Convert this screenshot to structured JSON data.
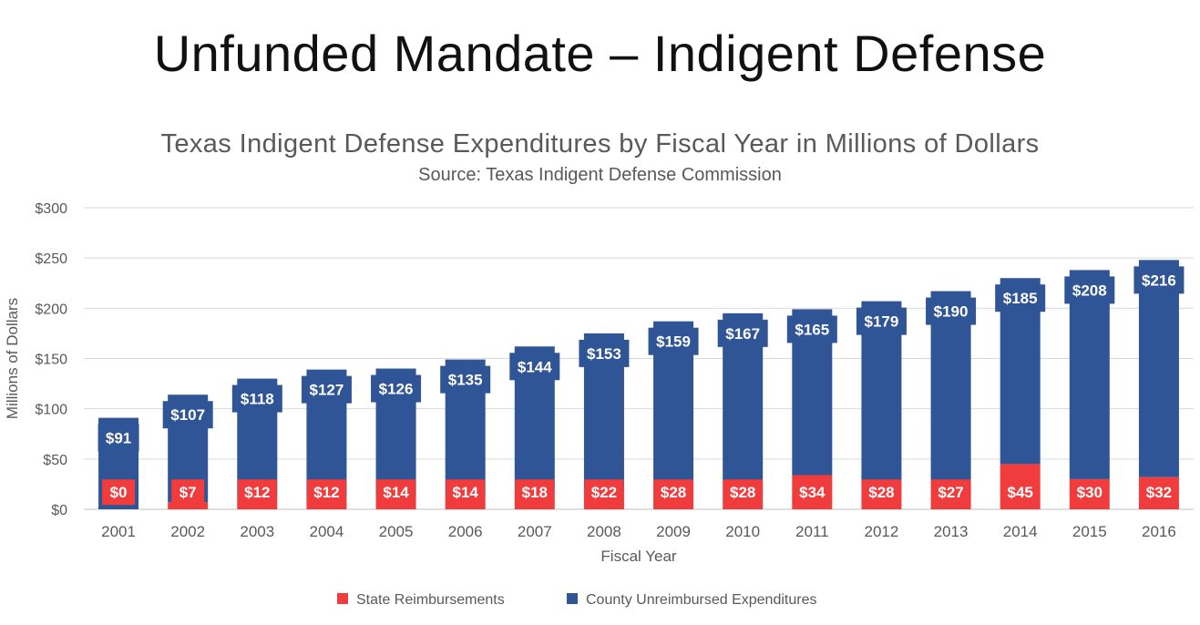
{
  "slide": {
    "title": "Unfunded Mandate – Indigent Defense"
  },
  "chart_data": {
    "type": "bar",
    "stacked": true,
    "title": "Texas Indigent Defense Expenditures by Fiscal Year in Millions of Dollars",
    "subtitle": "Source: Texas Indigent Defense Commission",
    "xlabel": "Fiscal Year",
    "ylabel": "Millions of Dollars",
    "ylim": [
      0,
      300
    ],
    "yticks": [
      0,
      50,
      100,
      150,
      200,
      250,
      300
    ],
    "ytick_labels": [
      "$0",
      "$50",
      "$100",
      "$150",
      "$200",
      "$250",
      "$300"
    ],
    "grid": true,
    "legend_position": "bottom",
    "categories": [
      "2001",
      "2002",
      "2003",
      "2004",
      "2005",
      "2006",
      "2007",
      "2008",
      "2009",
      "2010",
      "2011",
      "2012",
      "2013",
      "2014",
      "2015",
      "2016"
    ],
    "series": [
      {
        "name": "State Reimbursements",
        "color": "#f03c3c",
        "values": [
          0,
          7,
          12,
          12,
          14,
          14,
          18,
          22,
          28,
          28,
          34,
          28,
          27,
          45,
          30,
          32
        ],
        "labels": [
          "$0",
          "$7",
          "$12",
          "$12",
          "$14",
          "$14",
          "$18",
          "$22",
          "$28",
          "$28",
          "$34",
          "$28",
          "$27",
          "$45",
          "$30",
          "$32"
        ]
      },
      {
        "name": "County Unreimbursed Expenditures",
        "color": "#2f5597",
        "values": [
          91,
          107,
          118,
          127,
          126,
          135,
          144,
          153,
          159,
          167,
          165,
          179,
          190,
          185,
          208,
          216
        ],
        "labels": [
          "$91",
          "$107",
          "$118",
          "$127",
          "$126",
          "$135",
          "$144",
          "$153",
          "$159",
          "$167",
          "$165",
          "$179",
          "$190",
          "$185",
          "$208",
          "$216"
        ]
      }
    ]
  }
}
